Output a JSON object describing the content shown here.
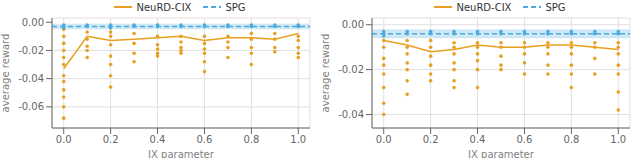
{
  "chart_data": [
    {
      "type": "scatter",
      "xlabel": "IX parameter",
      "ylabel": "average reward",
      "xlim": [
        -0.05,
        1.05
      ],
      "xticks": [
        {
          "value": 0.0,
          "label": "0.0"
        },
        0.2,
        0.4,
        0.6,
        0.8,
        {
          "value": 1.0,
          "label": "1.0"
        }
      ],
      "ylim": [
        -0.075,
        0.003
      ],
      "yticks": [
        {
          "value": 0.0,
          "label": "0.00"
        },
        -0.02,
        -0.04,
        -0.06
      ],
      "grid": true,
      "legend": "top",
      "series": [
        {
          "name": "NeuRD-CIX",
          "type": "line",
          "color": "#E8A020",
          "x": [
            0.0,
            0.1,
            0.2,
            0.3,
            0.4,
            0.5,
            0.6,
            0.7,
            0.8,
            0.9,
            1.0
          ],
          "values": [
            -0.033,
            -0.01,
            -0.013,
            -0.012,
            -0.011,
            -0.01,
            -0.013,
            -0.011,
            -0.011,
            -0.012,
            -0.008
          ]
        },
        {
          "name": "SPG",
          "type": "hline",
          "line_style": "dashed",
          "color": "#4DAADC",
          "values": [
            -0.003
          ]
        },
        {
          "type": "scatter",
          "color": "#E8A020",
          "x": [
            0.0,
            0.0,
            0.0,
            0.0,
            0.0,
            0.0,
            0.0,
            0.0,
            0.0,
            0.0,
            0.0,
            0.0,
            0.1,
            0.1,
            0.1,
            0.1,
            0.1,
            0.2,
            0.2,
            0.2,
            0.2,
            0.2,
            0.2,
            0.2,
            0.3,
            0.3,
            0.3,
            0.3,
            0.4,
            0.4,
            0.4,
            0.4,
            0.4,
            0.5,
            0.5,
            0.5,
            0.5,
            0.5,
            0.6,
            0.6,
            0.6,
            0.6,
            0.6,
            0.6,
            0.7,
            0.7,
            0.7,
            0.7,
            0.8,
            0.8,
            0.8,
            0.8,
            0.8,
            0.9,
            0.9,
            0.9,
            0.9,
            1.0,
            1.0,
            1.0,
            1.0,
            1.0
          ],
          "values": [
            -0.005,
            -0.01,
            -0.015,
            -0.02,
            -0.025,
            -0.03,
            -0.038,
            -0.042,
            -0.048,
            -0.053,
            -0.06,
            -0.068,
            -0.007,
            -0.012,
            -0.017,
            -0.02,
            -0.025,
            -0.007,
            -0.01,
            -0.016,
            -0.024,
            -0.03,
            -0.038,
            -0.046,
            -0.008,
            -0.015,
            -0.022,
            -0.028,
            -0.01,
            -0.016,
            -0.019,
            -0.022,
            -0.024,
            -0.01,
            -0.014,
            -0.018,
            -0.02,
            -0.022,
            -0.01,
            -0.015,
            -0.019,
            -0.022,
            -0.028,
            -0.035,
            -0.01,
            -0.014,
            -0.018,
            -0.025,
            -0.008,
            -0.012,
            -0.018,
            -0.022,
            -0.03,
            -0.008,
            -0.012,
            -0.018,
            -0.021,
            -0.01,
            -0.013,
            -0.018,
            -0.022,
            -0.025
          ]
        },
        {
          "type": "scatter",
          "color": "#4DAADC",
          "x": [
            0.0,
            0.0,
            0.0,
            0.1,
            0.1,
            0.2,
            0.2,
            0.3,
            0.3,
            0.4,
            0.4,
            0.5,
            0.5,
            0.6,
            0.6,
            0.7,
            0.7,
            0.8,
            0.8,
            0.9,
            0.9,
            1.0,
            1.0
          ],
          "values": [
            -0.002,
            -0.003,
            -0.004,
            -0.002,
            -0.003,
            -0.002,
            -0.004,
            -0.002,
            -0.003,
            -0.002,
            -0.003,
            -0.002,
            -0.003,
            -0.002,
            -0.003,
            -0.002,
            -0.003,
            -0.002,
            -0.003,
            -0.002,
            -0.003,
            -0.002,
            -0.003
          ]
        },
        {
          "type": "band",
          "color": "#C5E4F5",
          "values": [
            -0.005,
            -0.001
          ]
        }
      ]
    },
    {
      "type": "scatter",
      "xlabel": "IX parameter",
      "ylabel": "average reward",
      "xlim": [
        -0.05,
        1.05
      ],
      "xticks": [
        {
          "value": 0.0,
          "label": "0.0"
        },
        0.2,
        0.4,
        0.6,
        0.8,
        {
          "value": 1.0,
          "label": "1.0"
        }
      ],
      "ylim": [
        -0.046,
        0.003
      ],
      "yticks": [
        {
          "value": 0.0,
          "label": "0.00"
        },
        -0.02,
        -0.04
      ],
      "grid": true,
      "legend": "top",
      "series": [
        {
          "name": "NeuRD-CIX",
          "type": "line",
          "color": "#E8A020",
          "x": [
            0.0,
            0.1,
            0.2,
            0.3,
            0.4,
            0.5,
            0.6,
            0.7,
            0.8,
            0.9,
            1.0
          ],
          "values": [
            -0.007,
            -0.009,
            -0.012,
            -0.011,
            -0.009,
            -0.01,
            -0.01,
            -0.009,
            -0.009,
            -0.01,
            -0.011
          ]
        },
        {
          "name": "SPG",
          "type": "hline",
          "line_style": "dashed",
          "color": "#4DAADC",
          "values": [
            -0.004
          ]
        },
        {
          "type": "scatter",
          "color": "#E8A020",
          "x": [
            0.0,
            0.0,
            0.0,
            0.0,
            0.0,
            0.0,
            0.0,
            0.0,
            0.1,
            0.1,
            0.1,
            0.1,
            0.1,
            0.1,
            0.1,
            0.2,
            0.2,
            0.2,
            0.2,
            0.2,
            0.2,
            0.3,
            0.3,
            0.3,
            0.3,
            0.3,
            0.3,
            0.3,
            0.4,
            0.4,
            0.4,
            0.4,
            0.4,
            0.4,
            0.5,
            0.5,
            0.5,
            0.5,
            0.5,
            0.6,
            0.6,
            0.6,
            0.6,
            0.6,
            0.7,
            0.7,
            0.7,
            0.7,
            0.7,
            0.8,
            0.8,
            0.8,
            0.8,
            0.8,
            0.8,
            0.9,
            0.9,
            0.9,
            0.9,
            1.0,
            1.0,
            1.0,
            1.0,
            1.0,
            1.0,
            1.0
          ],
          "values": [
            -0.007,
            -0.01,
            -0.015,
            -0.018,
            -0.022,
            -0.028,
            -0.035,
            -0.04,
            -0.007,
            -0.01,
            -0.013,
            -0.017,
            -0.02,
            -0.025,
            -0.031,
            -0.007,
            -0.01,
            -0.014,
            -0.018,
            -0.022,
            -0.025,
            -0.008,
            -0.01,
            -0.013,
            -0.017,
            -0.02,
            -0.025,
            -0.028,
            -0.008,
            -0.01,
            -0.013,
            -0.016,
            -0.02,
            -0.028,
            -0.008,
            -0.01,
            -0.014,
            -0.018,
            -0.02,
            -0.008,
            -0.01,
            -0.013,
            -0.017,
            -0.022,
            -0.008,
            -0.01,
            -0.013,
            -0.018,
            -0.022,
            -0.008,
            -0.01,
            -0.013,
            -0.018,
            -0.022,
            -0.028,
            -0.008,
            -0.01,
            -0.015,
            -0.022,
            -0.008,
            -0.01,
            -0.013,
            -0.018,
            -0.022,
            -0.03,
            -0.038
          ]
        },
        {
          "type": "scatter",
          "color": "#4DAADC",
          "x": [
            0.0,
            0.0,
            0.0,
            0.1,
            0.1,
            0.2,
            0.2,
            0.3,
            0.3,
            0.4,
            0.4,
            0.5,
            0.5,
            0.6,
            0.6,
            0.7,
            0.7,
            0.8,
            0.8,
            0.9,
            0.9,
            1.0,
            1.0
          ],
          "values": [
            -0.003,
            -0.004,
            -0.005,
            -0.003,
            -0.004,
            -0.003,
            -0.004,
            -0.003,
            -0.004,
            -0.003,
            -0.004,
            -0.003,
            -0.004,
            -0.003,
            -0.004,
            -0.003,
            -0.004,
            -0.003,
            -0.004,
            -0.003,
            -0.004,
            -0.003,
            -0.004
          ]
        },
        {
          "type": "band",
          "color": "#C5E4F5",
          "values": [
            -0.006,
            -0.002
          ]
        }
      ]
    }
  ]
}
